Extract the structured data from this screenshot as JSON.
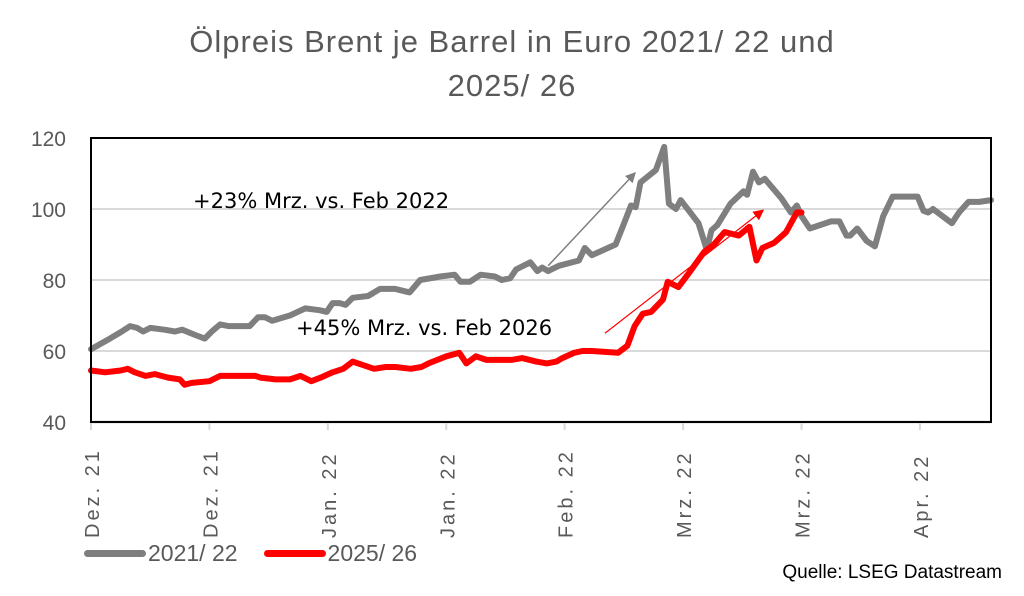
{
  "title_line1": "Ölpreis Brent je Barrel in Euro 2021/ 22 und",
  "title_line2": "2025/ 26",
  "source": "Quelle: LSEG Datastream",
  "legend": [
    {
      "label": "2021/ 22",
      "color": "#7f7f7f"
    },
    {
      "label": "2025/ 26",
      "color": "#ff0000"
    }
  ],
  "annotations": {
    "gray": "+23% Mrz. vs. Feb 2022",
    "red": "+45% Mrz. vs. Feb 2026"
  },
  "chart_data": {
    "type": "line",
    "title": "Ölpreis Brent je Barrel in Euro 2021/ 22 und 2025/ 26",
    "xlabel": "",
    "ylabel": "",
    "ylim": [
      40,
      120
    ],
    "yticks": [
      40,
      60,
      80,
      100,
      120
    ],
    "grid": "horizontal",
    "legend_position": "bottom-left",
    "x_range": [
      0,
      76
    ],
    "x_tick_positions": [
      0,
      10,
      20,
      30,
      40,
      50,
      60,
      70
    ],
    "x_tick_labels": [
      "Dez. 21",
      "Dez. 21",
      "Jan. 22",
      "Jan. 22",
      "Feb. 22",
      "Mrz. 22",
      "Mrz. 22",
      "Apr. 22"
    ],
    "series": [
      {
        "name": "2021/ 22",
        "color": "#7f7f7f",
        "points": [
          [
            0,
            60.5
          ],
          [
            0.8,
            62
          ],
          [
            1.6,
            63.5
          ],
          [
            2.6,
            65.5
          ],
          [
            3.3,
            67
          ],
          [
            3.9,
            66.5
          ],
          [
            4.4,
            65.5
          ],
          [
            5,
            66.5
          ],
          [
            6.2,
            66
          ],
          [
            7.1,
            65.5
          ],
          [
            7.7,
            66
          ],
          [
            8.8,
            64.5
          ],
          [
            9.6,
            63.5
          ],
          [
            10.2,
            65.5
          ],
          [
            10.9,
            67.5
          ],
          [
            11.6,
            67
          ],
          [
            13.4,
            67
          ],
          [
            14.1,
            69.5
          ],
          [
            14.7,
            69.5
          ],
          [
            15.3,
            68.5
          ],
          [
            16.8,
            70
          ],
          [
            18.1,
            72
          ],
          [
            19.3,
            71.5
          ],
          [
            19.9,
            71
          ],
          [
            20.4,
            73.5
          ],
          [
            21,
            73.5
          ],
          [
            21.5,
            73
          ],
          [
            22.1,
            75
          ],
          [
            23.4,
            75.5
          ],
          [
            24.4,
            77.5
          ],
          [
            25.7,
            77.5
          ],
          [
            26.9,
            76.5
          ],
          [
            27.8,
            80
          ],
          [
            29.5,
            81
          ],
          [
            30.7,
            81.5
          ],
          [
            31.2,
            79.5
          ],
          [
            32,
            79.5
          ],
          [
            32.9,
            81.5
          ],
          [
            34.1,
            81
          ],
          [
            34.7,
            80
          ],
          [
            35.4,
            80.5
          ],
          [
            35.9,
            83
          ],
          [
            37.1,
            85
          ],
          [
            37.7,
            82.5
          ],
          [
            38.1,
            83.5
          ],
          [
            38.6,
            82.5
          ],
          [
            39.5,
            84
          ],
          [
            41.2,
            85.5
          ],
          [
            41.7,
            89
          ],
          [
            42.3,
            87
          ],
          [
            44.3,
            90
          ],
          [
            44.9,
            95
          ],
          [
            45.6,
            101
          ],
          [
            46,
            100.5
          ],
          [
            46.4,
            107.5
          ],
          [
            47.7,
            111
          ],
          [
            48.4,
            117.5
          ],
          [
            48.8,
            101.5
          ],
          [
            49.4,
            100
          ],
          [
            49.8,
            102.5
          ],
          [
            51.3,
            96
          ],
          [
            52,
            88.5
          ],
          [
            52.4,
            94
          ],
          [
            52.9,
            95.5
          ],
          [
            54,
            101.5
          ],
          [
            55.1,
            105
          ],
          [
            55.4,
            104
          ],
          [
            55.9,
            110.5
          ],
          [
            56.4,
            107.5
          ],
          [
            56.9,
            108.5
          ],
          [
            58.3,
            103
          ],
          [
            59.1,
            99
          ],
          [
            59.6,
            101
          ],
          [
            60,
            98
          ],
          [
            60.7,
            94.5
          ],
          [
            62.5,
            96.5
          ],
          [
            63.2,
            96.5
          ],
          [
            63.8,
            92.5
          ],
          [
            64.1,
            92.5
          ],
          [
            64.7,
            94.5
          ],
          [
            65.5,
            91
          ],
          [
            66.2,
            89.5
          ],
          [
            66.9,
            98
          ],
          [
            67.7,
            103.5
          ],
          [
            69,
            103.5
          ],
          [
            69.8,
            103.5
          ],
          [
            70.3,
            99.5
          ],
          [
            70.7,
            99
          ],
          [
            71.1,
            100
          ],
          [
            72.7,
            96
          ],
          [
            73.3,
            99
          ],
          [
            74.1,
            102
          ],
          [
            75,
            102
          ],
          [
            76,
            102.5
          ]
        ]
      },
      {
        "name": "2025/ 26",
        "color": "#ff0000",
        "points": [
          [
            0,
            54.5
          ],
          [
            1.2,
            54
          ],
          [
            2.5,
            54.5
          ],
          [
            3.1,
            55
          ],
          [
            3.7,
            54
          ],
          [
            4.6,
            53
          ],
          [
            5.4,
            53.5
          ],
          [
            6.5,
            52.5
          ],
          [
            7.5,
            52
          ],
          [
            7.9,
            50.5
          ],
          [
            8.5,
            51
          ],
          [
            10,
            51.5
          ],
          [
            10.9,
            53
          ],
          [
            13.9,
            53
          ],
          [
            14.3,
            52.5
          ],
          [
            15.6,
            52
          ],
          [
            16.8,
            52
          ],
          [
            17.7,
            53
          ],
          [
            18.6,
            51.5
          ],
          [
            19.4,
            52.5
          ],
          [
            20.4,
            54
          ],
          [
            21.3,
            55
          ],
          [
            22.1,
            57
          ],
          [
            23,
            56
          ],
          [
            23.9,
            55
          ],
          [
            24.9,
            55.5
          ],
          [
            25.7,
            55.5
          ],
          [
            27,
            55
          ],
          [
            27.9,
            55.5
          ],
          [
            28.5,
            56.5
          ],
          [
            30,
            58.5
          ],
          [
            31.1,
            59.5
          ],
          [
            31.7,
            56.5
          ],
          [
            32.5,
            58.5
          ],
          [
            33.4,
            57.5
          ],
          [
            34.2,
            57.5
          ],
          [
            35.5,
            57.5
          ],
          [
            36.4,
            58
          ],
          [
            37.6,
            57
          ],
          [
            38.5,
            56.5
          ],
          [
            39.3,
            57
          ],
          [
            39.8,
            58
          ],
          [
            40.8,
            59.5
          ],
          [
            41.5,
            60
          ],
          [
            42.3,
            60
          ],
          [
            44.5,
            59.5
          ],
          [
            45.3,
            61.5
          ],
          [
            45.9,
            67
          ],
          [
            46.6,
            70.5
          ],
          [
            47.3,
            71
          ],
          [
            48.3,
            74.5
          ],
          [
            48.7,
            79.5
          ],
          [
            49.6,
            78
          ],
          [
            50.5,
            82
          ],
          [
            51.8,
            88
          ],
          [
            52.6,
            90
          ],
          [
            53.5,
            93.5
          ],
          [
            54.7,
            92.5
          ],
          [
            55.6,
            95
          ],
          [
            56.2,
            85.5
          ],
          [
            56.7,
            89
          ],
          [
            57.7,
            90.5
          ],
          [
            58.7,
            93.5
          ],
          [
            59.6,
            99
          ],
          [
            60,
            99
          ]
        ]
      }
    ],
    "annotations": [
      {
        "text": "+23% Mrz. vs. Feb 2022",
        "arrow_from": [
          38.6,
          84
        ],
        "arrow_to": [
          45.9,
          110
        ]
      },
      {
        "text": "+45% Mrz. vs. Feb 2026",
        "arrow_from": [
          43.4,
          65
        ],
        "arrow_to": [
          56.7,
          99.5
        ]
      }
    ]
  }
}
